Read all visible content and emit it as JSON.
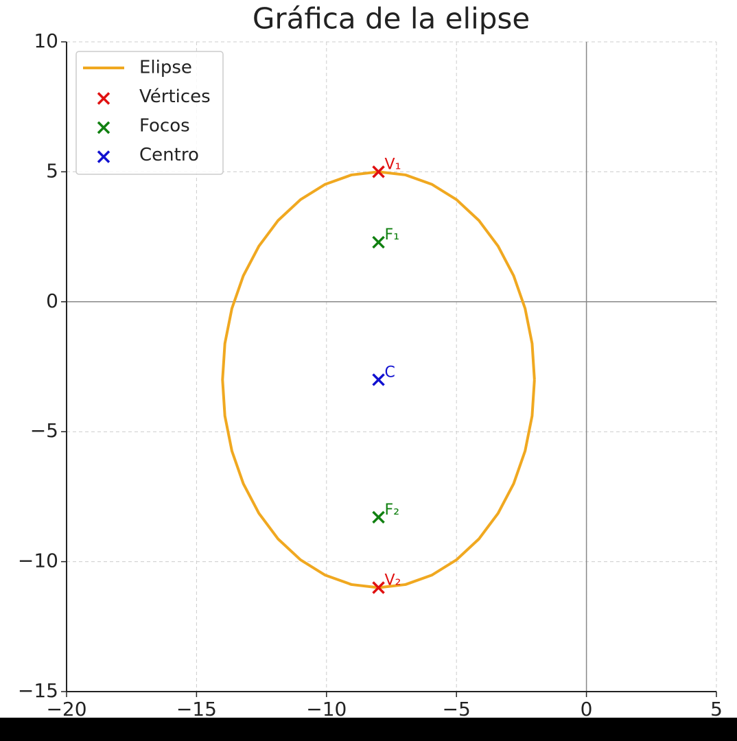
{
  "chart_data": {
    "type": "line",
    "title": "Gráfica de la elipse",
    "xlim": [
      -20,
      5
    ],
    "ylim": [
      -15,
      10
    ],
    "xticks": [
      {
        "value": -20,
        "label": "−20"
      },
      {
        "value": -15,
        "label": "−15"
      },
      {
        "value": -10,
        "label": "−10"
      },
      {
        "value": -5,
        "label": "−5"
      },
      0,
      5
    ],
    "yticks": [
      {
        "value": -15,
        "label": "−15"
      },
      {
        "value": -10,
        "label": "−10"
      },
      {
        "value": -5,
        "label": "−5"
      },
      0,
      5,
      10
    ],
    "grid": true,
    "zero_lines": true,
    "legend": "upper left",
    "series": [
      {
        "name": "Elipse",
        "type": "line",
        "color": "#f0a820",
        "x": [
          -2,
          -2.09,
          -2.36,
          -2.8,
          -3.4,
          -4.14,
          -5,
          -5.95,
          -6.96,
          -8,
          -9.04,
          -10.05,
          -11,
          -11.86,
          -12.6,
          -13.2,
          -13.64,
          -13.91,
          -14,
          -13.91,
          -13.64,
          -13.2,
          -12.6,
          -11.86,
          -11,
          -10.05,
          -9.04,
          -8,
          -6.96,
          -5.95,
          -5,
          -4.14,
          -3.4,
          -2.8,
          -2.36,
          -2.09,
          -2
        ],
        "values": [
          -3,
          -1.61,
          -0.26,
          1,
          2.14,
          3.13,
          3.93,
          4.52,
          4.88,
          5,
          4.88,
          4.52,
          3.93,
          3.13,
          2.14,
          1,
          -0.26,
          -1.61,
          -3,
          -4.39,
          -5.74,
          -7,
          -8.14,
          -9.13,
          -9.93,
          -10.52,
          -10.88,
          -11,
          -10.88,
          -10.52,
          -9.93,
          -9.13,
          -8.14,
          -7,
          -5.74,
          -4.39,
          -3
        ]
      },
      {
        "name": "Vértices",
        "type": "scatter",
        "color": "#e01010",
        "x": [
          -8,
          -8
        ],
        "values": [
          5,
          -11
        ],
        "labels": [
          "V₁",
          "V₂"
        ]
      },
      {
        "name": "Focos",
        "type": "scatter",
        "color": "#108010",
        "x": [
          -8,
          -8
        ],
        "values": [
          2.29,
          -8.29
        ],
        "labels": [
          "F₁",
          "F₂"
        ]
      },
      {
        "name": "Centro",
        "type": "scatter",
        "color": "#1010d0",
        "x": [
          -8
        ],
        "values": [
          -3
        ],
        "labels": [
          "C"
        ]
      }
    ]
  }
}
